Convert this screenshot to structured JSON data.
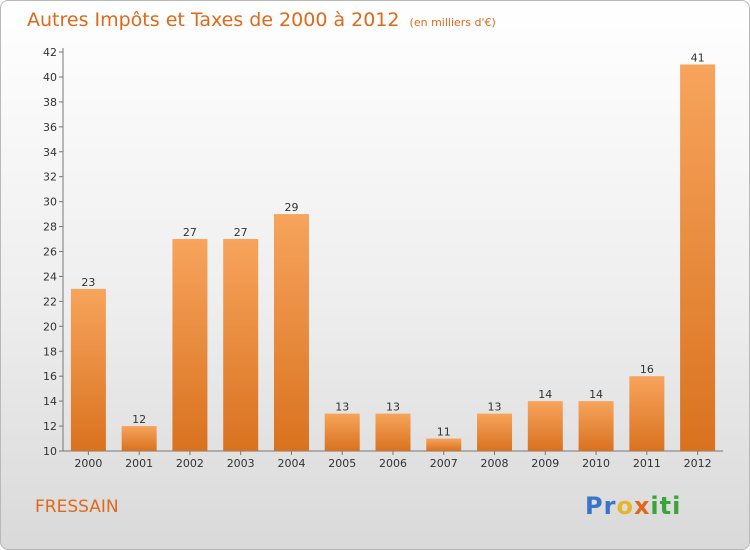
{
  "title": "Autres Impôts et Taxes de 2000 à 2012",
  "unit_label": "(en milliers d'€)",
  "commune": "FRESSAIN",
  "logo": {
    "text": "Proxiti"
  },
  "colors": {
    "bar_top": "#f7a45c",
    "bar_bottom": "#d9721f",
    "title": "#e0681a"
  },
  "chart_data": {
    "type": "bar",
    "title": "Autres Impôts et Taxes de 2000 à 2012",
    "xlabel": "",
    "ylabel": "",
    "categories": [
      "2000",
      "2001",
      "2002",
      "2003",
      "2004",
      "2005",
      "2006",
      "2007",
      "2008",
      "2009",
      "2010",
      "2011",
      "2012"
    ],
    "values": [
      23,
      12,
      27,
      27,
      29,
      13,
      13,
      11,
      13,
      14,
      14,
      16,
      41
    ],
    "ylim": [
      10,
      42
    ],
    "yticks": [
      10,
      12,
      14,
      16,
      18,
      20,
      22,
      24,
      26,
      28,
      30,
      32,
      34,
      36,
      38,
      40,
      42
    ],
    "grid": false,
    "legend": "none"
  }
}
